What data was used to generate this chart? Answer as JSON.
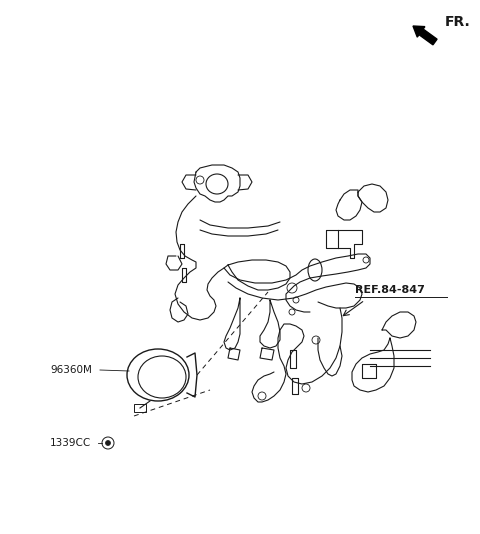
{
  "bg_color": "#ffffff",
  "line_color": "#1a1a1a",
  "text_color": "#1a1a1a",
  "fr_label": "FR.",
  "ref_label": "REF.84-847",
  "part1_label": "96360M",
  "part2_label": "1339CC",
  "font_size_labels": 7.5,
  "font_size_fr": 10,
  "figsize": [
    4.8,
    5.34
  ],
  "dpi": 100
}
